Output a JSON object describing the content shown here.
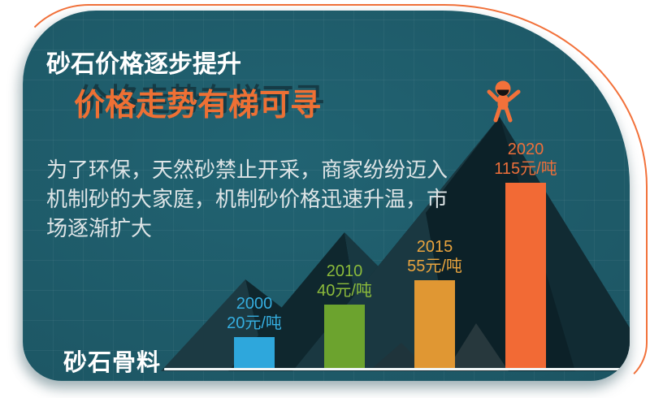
{
  "card": {
    "background": "#1d5965",
    "accent_color": "#f2713a",
    "title_line1": "砂石价格逐步提升",
    "title_line2": "价格走势有梯可寻",
    "body_text": "为了环保，天然砂禁止开采，商家纷纷迈入机制砂的大家庭，机制砂价格迅速升温，市场逐渐扩大",
    "footer_label": "砂石骨料"
  },
  "icons": {
    "figure": "cheering-person-icon",
    "mountains": "mountain-silhouette-graphic"
  },
  "chart_data": {
    "type": "bar",
    "categories": [
      "2000",
      "2010",
      "2015",
      "2020"
    ],
    "values": [
      20,
      40,
      55,
      115
    ],
    "unit": "元/吨",
    "value_labels": [
      "20元/吨",
      "40元/吨",
      "55元/吨",
      "115元/吨"
    ],
    "bar_colors": [
      "#2ea7dc",
      "#6ca32e",
      "#e09733",
      "#f26a35"
    ],
    "label_colors": [
      "#35aee0",
      "#8cbb3b",
      "#e9a43e",
      "#ee6f3a"
    ],
    "title": "",
    "xlabel": "",
    "ylabel": "",
    "ylim": [
      0,
      120
    ],
    "grid": "subtle-background-grid",
    "legend": "none"
  }
}
